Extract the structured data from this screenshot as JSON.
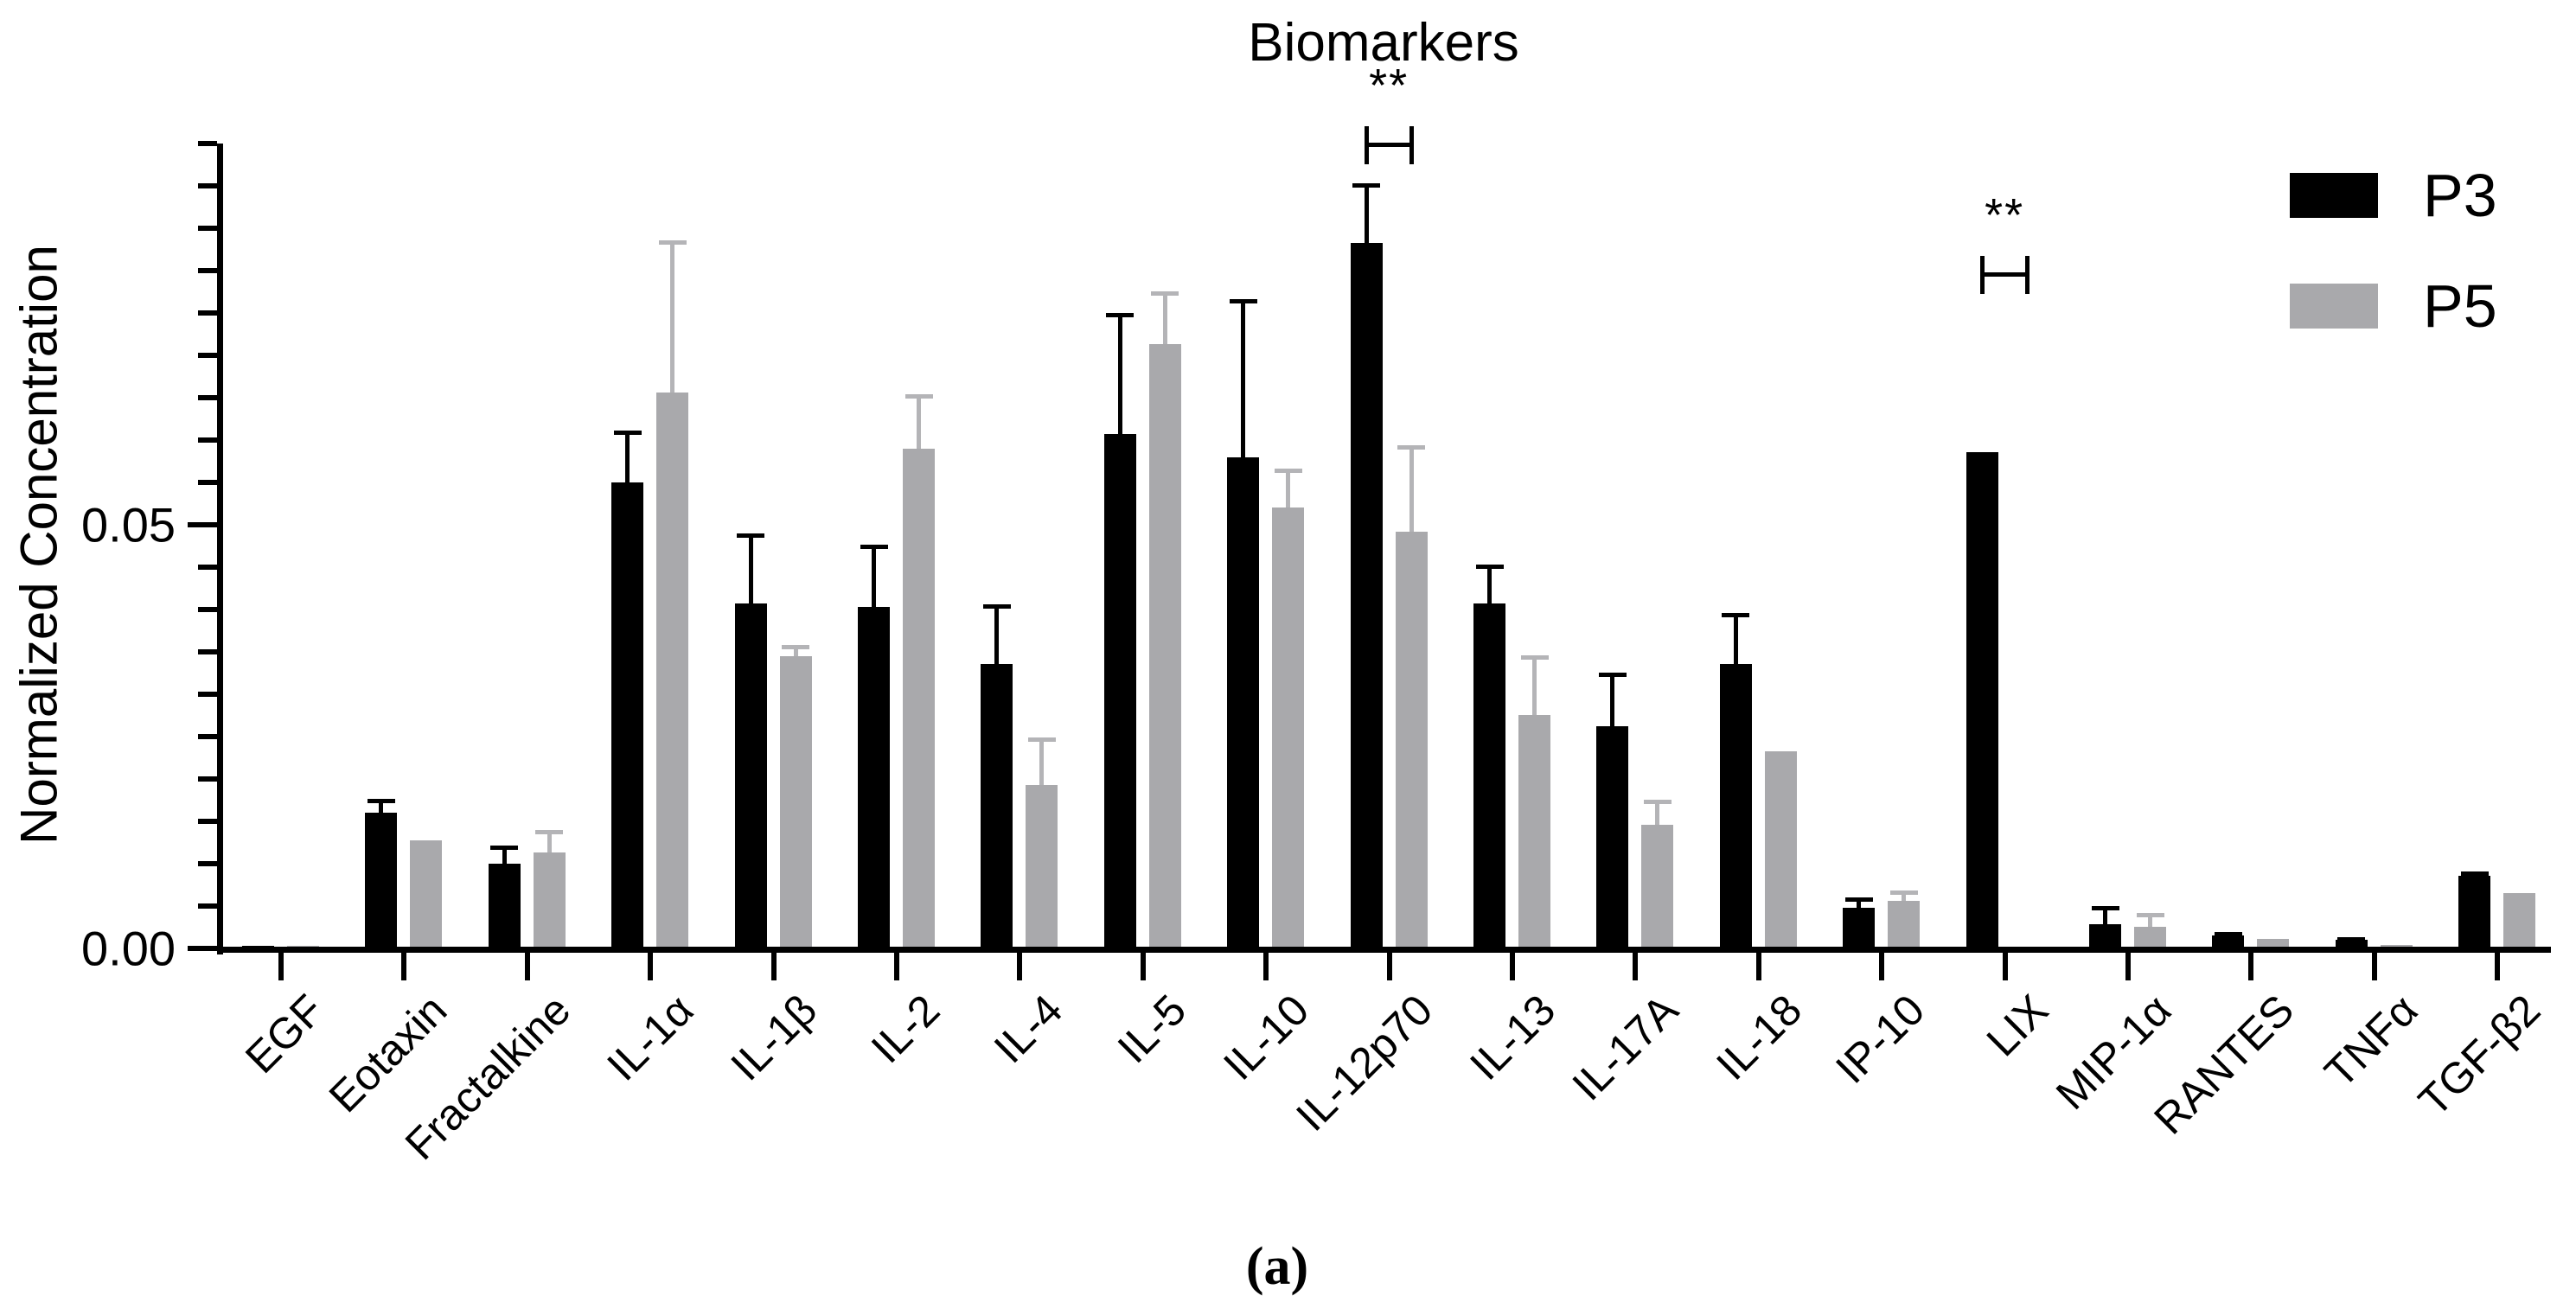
{
  "title": "Biomarkers",
  "caption": "(a)",
  "y_axis": {
    "label": "Normalized Concentration",
    "ticks": [
      {
        "label": "0.00",
        "value": 0.0
      },
      {
        "label": "0.05",
        "value": 0.05
      }
    ],
    "minor_step": 0.005,
    "min": 0,
    "max": 0.095
  },
  "legend": [
    {
      "label": "P3",
      "color": "#000000"
    },
    {
      "label": "P5",
      "color": "#a9a9ac"
    }
  ],
  "chart_data": {
    "type": "bar",
    "title": "Biomarkers",
    "xlabel": "",
    "ylabel": "Normalized Concentration",
    "ylim": [
      0,
      0.095
    ],
    "grid": false,
    "legend_position": "top-right",
    "categories": [
      "EGF",
      "Eotaxin",
      "Fractalkine",
      "IL-1α",
      "IL-1β",
      "IL-2",
      "IL-4",
      "IL-5",
      "IL-10",
      "IL-12p70",
      "IL-13",
      "IL-17A",
      "IL-18",
      "IP-10",
      "LIX",
      "MIP-1α",
      "RANTES",
      "TNFα",
      "TGF-β2"
    ],
    "series": [
      {
        "name": "P3",
        "color": "#000000",
        "error_color": "#000000",
        "values": [
          0.0003,
          0.016,
          0.01,
          0.055,
          0.0407,
          0.0403,
          0.0336,
          0.0607,
          0.058,
          0.0833,
          0.0407,
          0.0262,
          0.0336,
          0.0048,
          0.0586,
          0.0029,
          0.0015,
          0.001,
          0.0086
        ],
        "errors": [
          0,
          0.0017,
          0.0021,
          0.0061,
          0.0083,
          0.0074,
          0.007,
          0.0143,
          0.0186,
          0.007,
          0.0046,
          0.0064,
          0.006,
          0.0012,
          0,
          0.0021,
          0.0004,
          0.0003,
          0.0005
        ]
      },
      {
        "name": "P5",
        "color": "#a9a9ac",
        "error_color": "#b4b4b7",
        "values": [
          0.0003,
          0.0128,
          0.0113,
          0.0656,
          0.0345,
          0.059,
          0.0193,
          0.0713,
          0.052,
          0.0492,
          0.0276,
          0.0146,
          0.0233,
          0.0056,
          0.0002,
          0.0026,
          0.0011,
          0.0004,
          0.0065
        ],
        "errors": [
          0,
          0,
          0.0027,
          0.018,
          0.0013,
          0.0064,
          0.0056,
          0.0063,
          0.0046,
          0.0102,
          0.007,
          0.003,
          0,
          0.0012,
          0,
          0.0016,
          0,
          0,
          0
        ]
      }
    ],
    "annotations": [
      {
        "category": "IL-12p70",
        "label": "**",
        "bracket_value": 0.0948
      },
      {
        "category": "LIX",
        "label": "**",
        "bracket_value": 0.0795
      }
    ]
  }
}
